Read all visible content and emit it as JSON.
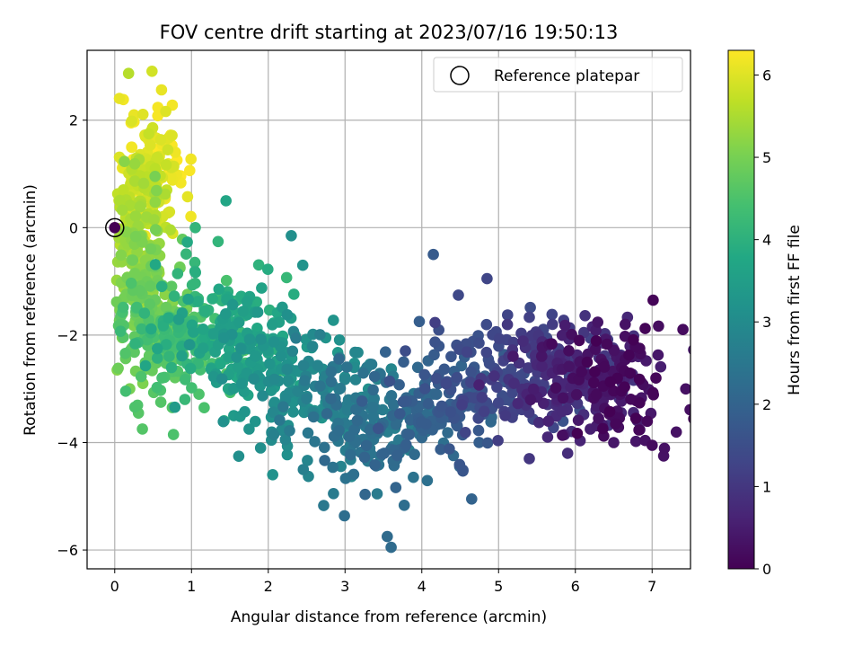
{
  "chart_data": {
    "type": "scatter",
    "title": "FOV centre drift starting at 2023/07/16 19:50:13",
    "xlabel": "Angular distance from reference (arcmin)",
    "ylabel": "Rotation from reference (arcmin)",
    "xlim": [
      -0.36,
      7.5
    ],
    "ylim": [
      -6.35,
      3.3
    ],
    "xticks": [
      0,
      1,
      2,
      3,
      4,
      5,
      6,
      7
    ],
    "yticks": [
      -6,
      -4,
      -2,
      0,
      2
    ],
    "grid": true,
    "colormap": "viridis",
    "colorbar": {
      "label": "Hours from first FF file",
      "min": 0,
      "max": 6.3,
      "ticks": [
        0,
        1,
        2,
        3,
        4,
        5,
        6
      ]
    },
    "legend": {
      "placement": "top-right",
      "entries": [
        {
          "label": "Reference platepar",
          "marker": "hollow-circle"
        }
      ]
    },
    "reference_point": {
      "x": 0,
      "y": 0
    },
    "trend": {
      "note": "points drift from upper-left (late hours) to lower-right (early hours)",
      "anchors": [
        {
          "hours": 0.0,
          "x": 6.6,
          "y": -3.0
        },
        {
          "hours": 0.5,
          "x": 6.3,
          "y": -2.9
        },
        {
          "hours": 1.0,
          "x": 5.7,
          "y": -2.6
        },
        {
          "hours": 1.5,
          "x": 4.8,
          "y": -2.8
        },
        {
          "hours": 2.0,
          "x": 3.9,
          "y": -3.6
        },
        {
          "hours": 2.5,
          "x": 3.2,
          "y": -3.8
        },
        {
          "hours": 3.0,
          "x": 2.5,
          "y": -3.1
        },
        {
          "hours": 3.5,
          "x": 1.7,
          "y": -2.2
        },
        {
          "hours": 4.0,
          "x": 1.3,
          "y": -1.6
        },
        {
          "hours": 4.5,
          "x": 0.8,
          "y": -2.4
        },
        {
          "hours": 5.0,
          "x": 0.35,
          "y": -1.4
        },
        {
          "hours": 5.5,
          "x": 0.3,
          "y": 0.0
        },
        {
          "hours": 6.0,
          "x": 0.45,
          "y": 1.0
        },
        {
          "hours": 6.3,
          "x": 0.55,
          "y": 1.4
        }
      ],
      "spread": {
        "x": 0.45,
        "y": 0.55
      },
      "count": 1500
    },
    "outliers": [
      {
        "x": 0.18,
        "y": 2.87,
        "hours": 5.6
      },
      {
        "x": 0.75,
        "y": 2.28,
        "hours": 6.2
      },
      {
        "x": 3.55,
        "y": -5.75,
        "hours": 2.2
      },
      {
        "x": 3.6,
        "y": -5.95,
        "hours": 2.2
      },
      {
        "x": 4.15,
        "y": -0.5,
        "hours": 1.8
      },
      {
        "x": 4.85,
        "y": -0.95,
        "hours": 1.3
      },
      {
        "x": 2.3,
        "y": -0.15,
        "hours": 3.1
      },
      {
        "x": 2.45,
        "y": -0.7,
        "hours": 3.2
      },
      {
        "x": 1.45,
        "y": 0.5,
        "hours": 3.7
      },
      {
        "x": 4.65,
        "y": -5.05,
        "hours": 2.0
      },
      {
        "x": 2.85,
        "y": -4.95,
        "hours": 2.6
      },
      {
        "x": 7.15,
        "y": -4.25,
        "hours": 0.3
      },
      {
        "x": 5.9,
        "y": -4.2,
        "hours": 0.8
      },
      {
        "x": 5.4,
        "y": -4.3,
        "hours": 1.0
      },
      {
        "x": 1.9,
        "y": -4.1,
        "hours": 3.1
      },
      {
        "x": 0.6,
        "y": -3.25,
        "hours": 4.6
      },
      {
        "x": 0.75,
        "y": -3.35,
        "hours": 4.6
      },
      {
        "x": 1.55,
        "y": -3.5,
        "hours": 3.4
      },
      {
        "x": 1.75,
        "y": -3.75,
        "hours": 3.2
      },
      {
        "x": 6.65,
        "y": -1.8,
        "hours": 0.3
      },
      {
        "x": 6.85,
        "y": -2.35,
        "hours": 0.2
      },
      {
        "x": 7.05,
        "y": -2.8,
        "hours": 0.1
      },
      {
        "x": 0.85,
        "y": -0.75,
        "hours": 4.9
      },
      {
        "x": 1.05,
        "y": 0.0,
        "hours": 4.1
      },
      {
        "x": 0.25,
        "y": 2.1,
        "hours": 6.1
      },
      {
        "x": 0.1,
        "y": -1.6,
        "hours": 5.2
      },
      {
        "x": 7.0,
        "y": -4.05,
        "hours": 0.2
      },
      {
        "x": 6.5,
        "y": -4.0,
        "hours": 0.4
      }
    ]
  }
}
